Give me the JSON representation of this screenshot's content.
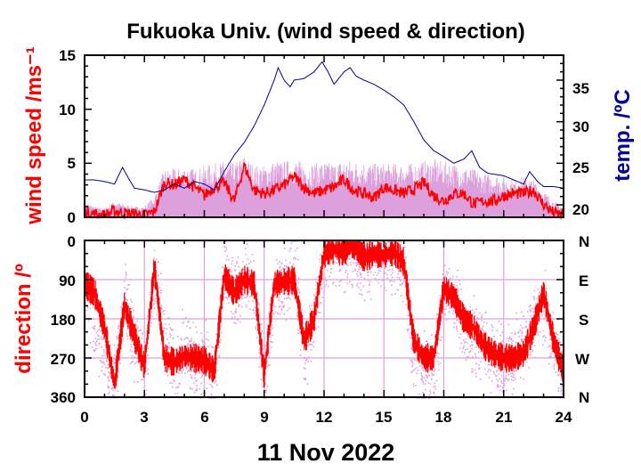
{
  "chart_data": [
    {
      "type": "line",
      "title": "Fukuoka Univ. (wind speed & direction)",
      "ylabel": "wind speed /ms⁻¹",
      "y2label": "temp. /ºC",
      "xlim": [
        0,
        24
      ],
      "ylim": [
        0,
        15
      ],
      "y2lim": [
        18.5,
        38
      ],
      "xticks": [
        "0",
        "3",
        "6",
        "9",
        "12",
        "15",
        "18",
        "21",
        "24"
      ],
      "yticks": [
        "0",
        "5",
        "10",
        "15"
      ],
      "y2ticks": [
        "20",
        "25",
        "30",
        "35"
      ],
      "colors": {
        "mean": "#ff0000",
        "gust": "#dda0dd",
        "temp": "#000099"
      },
      "series": [
        {
          "key": "mean_wind_speed",
          "x": [
            0,
            0.5,
            1,
            1.5,
            2,
            2.5,
            3,
            3.5,
            4,
            4.5,
            5,
            5.5,
            6,
            6.5,
            7,
            7.5,
            8,
            8.5,
            9,
            9.5,
            10,
            10.5,
            11,
            11.5,
            12,
            12.5,
            13,
            13.5,
            14,
            14.5,
            15,
            15.5,
            16,
            16.5,
            17,
            17.5,
            18,
            18.5,
            19,
            19.5,
            20,
            20.5,
            21,
            21.5,
            22,
            22.5,
            23,
            23.5,
            24
          ],
          "values": [
            0.5,
            0.3,
            0.2,
            0.6,
            0.4,
            0.3,
            0.2,
            0.5,
            3.2,
            3.0,
            3.5,
            2.8,
            2.0,
            2.8,
            3.2,
            1.5,
            4.8,
            2.5,
            2.2,
            2.5,
            3.0,
            3.8,
            2.8,
            2.2,
            2.5,
            2.8,
            3.5,
            2.5,
            2.2,
            1.8,
            2.8,
            2.5,
            2.2,
            2.6,
            3.2,
            2.0,
            1.5,
            2.2,
            2.2,
            1.2,
            1.5,
            1.5,
            2.0,
            2.2,
            2.2,
            2.5,
            1.2,
            0.4,
            0.2
          ]
        },
        {
          "key": "gust_wind_speed",
          "x": [
            0,
            0.5,
            1,
            1.5,
            2,
            2.5,
            3,
            3.5,
            4,
            4.5,
            5,
            5.5,
            6,
            6.5,
            7,
            7.5,
            8,
            8.5,
            9,
            9.5,
            10,
            10.5,
            11,
            11.5,
            12,
            12.5,
            13,
            13.5,
            14,
            14.5,
            15,
            15.5,
            16,
            16.5,
            17,
            17.5,
            18,
            18.5,
            19,
            19.5,
            20,
            20.5,
            21,
            21.5,
            22,
            22.5,
            23,
            23.5,
            24
          ],
          "values": [
            1.5,
            1.0,
            0.8,
            1.5,
            1.2,
            1.0,
            1.0,
            2.0,
            4.5,
            4.5,
            4.8,
            4.5,
            4.8,
            5.0,
            5.2,
            5.0,
            5.8,
            4.8,
            4.8,
            5.2,
            5.2,
            5.5,
            5.0,
            5.0,
            5.2,
            5.0,
            5.4,
            5.2,
            5.2,
            5.0,
            5.0,
            5.0,
            5.0,
            5.0,
            5.2,
            5.4,
            5.2,
            5.0,
            4.8,
            4.5,
            4.0,
            4.0,
            3.8,
            3.5,
            3.8,
            3.5,
            2.5,
            1.5,
            1.0
          ]
        },
        {
          "key": "temperature",
          "x": [
            0,
            0.5,
            1,
            1.5,
            1.9,
            2.2,
            2.5,
            3,
            3.5,
            4,
            4.5,
            5,
            5.5,
            6,
            6.5,
            7,
            7.5,
            8,
            8.5,
            9,
            9.5,
            9.7,
            10,
            10.3,
            10.5,
            11,
            11.5,
            11.9,
            12.2,
            12.5,
            13,
            13.3,
            13.6,
            14,
            14.5,
            15,
            15.5,
            16,
            16.5,
            17,
            17.5,
            18,
            18.5,
            19,
            19.4,
            19.8,
            20.2,
            21,
            21.5,
            22,
            22.3,
            22.7,
            23,
            23.5,
            24
          ],
          "values": [
            23.0,
            23.0,
            22.8,
            22.5,
            24.5,
            23.2,
            22.0,
            21.8,
            21.5,
            21.8,
            22.5,
            22.0,
            22.8,
            22.5,
            21.8,
            24.0,
            26.0,
            27.5,
            29.5,
            32.0,
            35.0,
            36.5,
            35.0,
            34.2,
            35.0,
            35.2,
            36.0,
            37.2,
            36.0,
            34.5,
            36.0,
            36.5,
            35.5,
            35.0,
            34.5,
            33.8,
            33.0,
            32.0,
            30.0,
            27.8,
            26.5,
            25.8,
            25.0,
            25.5,
            26.5,
            24.5,
            23.8,
            23.5,
            23.0,
            22.5,
            24.0,
            22.8,
            22.2,
            22.2,
            22.0
          ]
        }
      ]
    },
    {
      "type": "scatter",
      "xlabel": "11 Nov 2022",
      "ylabel": "direction /º",
      "xlim": [
        0,
        24
      ],
      "ylim": [
        0,
        360
      ],
      "xticks": [
        "0",
        "3",
        "6",
        "9",
        "12",
        "15",
        "18",
        "21",
        "24"
      ],
      "yticks": [
        "0",
        "90",
        "180",
        "270",
        "360"
      ],
      "compass": [
        "N",
        "E",
        "S",
        "W",
        "N"
      ],
      "series": [
        {
          "key": "mean_direction",
          "x": [
            0,
            0.5,
            1,
            1.5,
            2,
            2.5,
            3,
            3.5,
            4,
            4.5,
            5,
            5.5,
            6,
            6.5,
            7,
            7.5,
            8,
            8.5,
            9,
            9.5,
            10,
            10.5,
            11,
            11.5,
            12,
            12.5,
            13,
            13.5,
            14,
            14.5,
            15,
            15.5,
            16,
            16.5,
            17,
            17.5,
            18,
            18.5,
            19,
            19.5,
            20,
            20.5,
            21,
            21.5,
            22,
            22.5,
            23,
            23.5,
            24
          ],
          "values": [
            100,
            120,
            200,
            330,
            150,
            220,
            290,
            60,
            270,
            280,
            265,
            270,
            275,
            300,
            80,
            120,
            90,
            100,
            310,
            100,
            95,
            90,
            230,
            180,
            30,
            20,
            25,
            10,
            40,
            30,
            35,
            25,
            50,
            230,
            270,
            270,
            110,
            130,
            180,
            200,
            240,
            260,
            270,
            270,
            260,
            200,
            120,
            230,
            300
          ]
        },
        {
          "key": "instantaneous_direction",
          "x": [
            0,
            0.5,
            1,
            1.5,
            2,
            2.5,
            3,
            3.5,
            4,
            4.5,
            5,
            5.5,
            6,
            6.5,
            7,
            7.5,
            8,
            8.5,
            9,
            9.5,
            10,
            10.5,
            11,
            11.5,
            12,
            12.5,
            13,
            13.5,
            14,
            14.5,
            15,
            15.5,
            16,
            16.5,
            17,
            17.5,
            18,
            18.5,
            19,
            19.5,
            20,
            20.5,
            21,
            21.5,
            22,
            22.5,
            23,
            23.5,
            24
          ],
          "values": [
            90,
            200,
            250,
            330,
            120,
            260,
            300,
            60,
            240,
            280,
            230,
            290,
            270,
            330,
            60,
            130,
            80,
            120,
            330,
            110,
            110,
            60,
            280,
            160,
            40,
            10,
            30,
            20,
            60,
            20,
            40,
            30,
            60,
            300,
            300,
            300,
            100,
            150,
            200,
            220,
            250,
            270,
            280,
            260,
            240,
            180,
            150,
            260,
            320
          ]
        }
      ]
    }
  ]
}
